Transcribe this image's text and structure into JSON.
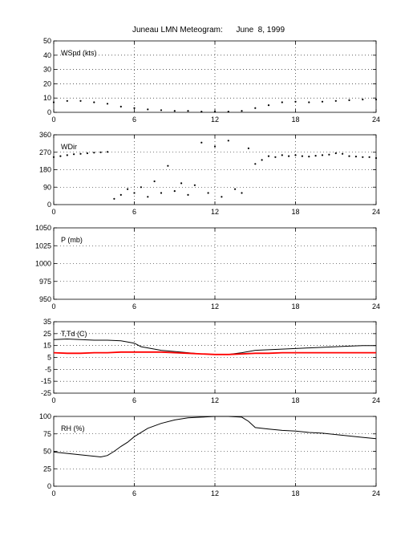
{
  "page": {
    "title": "Juneau LMN Meteogram:      June  8, 1999"
  },
  "chart_data": [
    {
      "type": "scatter",
      "panel_label": "WSpd (kts)",
      "x_ticks": [
        "0",
        "6",
        "12",
        "18",
        "24"
      ],
      "y_ticks": [
        "0",
        "10",
        "20",
        "30",
        "40",
        "50"
      ],
      "xlim": [
        0,
        24
      ],
      "ylim": [
        0,
        50
      ],
      "grid": true,
      "series": [
        {
          "color": "#000000",
          "x": [
            0,
            1,
            2,
            3,
            4,
            5,
            6,
            7,
            8,
            9,
            10,
            11,
            12,
            13,
            14,
            15,
            16,
            17,
            18,
            19,
            20,
            21,
            22,
            23,
            24
          ],
          "y": [
            7,
            8,
            8,
            7,
            6,
            4,
            3,
            2,
            1.5,
            1,
            1,
            0.5,
            0.5,
            0.5,
            1,
            3,
            5,
            7,
            7.5,
            7,
            7.5,
            8,
            8.5,
            9,
            9
          ]
        }
      ]
    },
    {
      "type": "scatter",
      "panel_label": "WDir",
      "x_ticks": [
        "0",
        "6",
        "12",
        "18",
        "24"
      ],
      "y_ticks": [
        "0",
        "90",
        "180",
        "270",
        "360"
      ],
      "xlim": [
        0,
        24
      ],
      "ylim": [
        0,
        360
      ],
      "grid": true,
      "series": [
        {
          "color": "#000000",
          "x": [
            0,
            0.5,
            1,
            1.5,
            2,
            2.5,
            3,
            3.5,
            4,
            4.5,
            5,
            5.5,
            6,
            6.5,
            7,
            7.5,
            8,
            8.5,
            9,
            9.5,
            10,
            10.5,
            11,
            11.5,
            12,
            12.5,
            13,
            13.5,
            14,
            14.5,
            15,
            15.5,
            16,
            16.5,
            17,
            17.5,
            18,
            18.5,
            19,
            19.5,
            20,
            20.5,
            21,
            21.5,
            22,
            22.5,
            23,
            23.5,
            24
          ],
          "y": [
            245,
            250,
            255,
            260,
            262,
            265,
            268,
            270,
            272,
            30,
            50,
            80,
            60,
            90,
            40,
            120,
            60,
            200,
            70,
            110,
            50,
            100,
            320,
            60,
            300,
            40,
            330,
            80,
            60,
            290,
            210,
            230,
            250,
            245,
            255,
            250,
            255,
            250,
            248,
            252,
            255,
            258,
            265,
            262,
            250,
            248,
            245,
            245,
            240
          ]
        }
      ]
    },
    {
      "type": "line",
      "panel_label": "P (mb)",
      "x_ticks": [
        "0",
        "6",
        "12",
        "18",
        "24"
      ],
      "y_ticks": [
        "950",
        "975",
        "1000",
        "1025",
        "1050"
      ],
      "xlim": [
        0,
        24
      ],
      "ylim": [
        950,
        1050
      ],
      "grid": true,
      "series": []
    },
    {
      "type": "line",
      "panel_label": "T,Td (C)",
      "x_ticks": [
        "0",
        "6",
        "12",
        "18",
        "24"
      ],
      "y_ticks": [
        "-25",
        "-15",
        "-5",
        "5",
        "15",
        "25",
        "35"
      ],
      "xlim": [
        0,
        24
      ],
      "ylim": [
        -25,
        35
      ],
      "grid": true,
      "series": [
        {
          "color": "#000000",
          "x": [
            0,
            1,
            2,
            3,
            4,
            5,
            6,
            6.5,
            7,
            8,
            9,
            10,
            11,
            12,
            13,
            14,
            15,
            16,
            17,
            18,
            19,
            20,
            21,
            22,
            23,
            24
          ],
          "y": [
            20,
            20.5,
            20,
            19.5,
            19.5,
            19,
            17,
            14,
            13,
            11,
            10,
            9,
            8,
            7.5,
            7.5,
            9,
            11,
            11.5,
            12,
            12.5,
            13,
            13.5,
            14,
            14.5,
            15,
            15
          ]
        },
        {
          "color": "#ff0000",
          "x": [
            0,
            1,
            2,
            3,
            4,
            5,
            6,
            7,
            8,
            9,
            10,
            11,
            12,
            13,
            14,
            15,
            16,
            17,
            18,
            19,
            20,
            21,
            22,
            23,
            24
          ],
          "y": [
            9,
            8.5,
            8.5,
            9,
            9,
            9.5,
            9.5,
            9.5,
            9.5,
            9,
            8.5,
            8,
            7.5,
            7.5,
            8,
            8.5,
            8.5,
            9,
            9,
            9,
            9,
            9,
            9,
            9,
            9
          ]
        }
      ]
    },
    {
      "type": "line",
      "panel_label": "RH (%)",
      "x_ticks": [
        "0",
        "6",
        "12",
        "18",
        "24"
      ],
      "y_ticks": [
        "0",
        "25",
        "50",
        "75",
        "100"
      ],
      "xlim": [
        0,
        24
      ],
      "ylim": [
        0,
        100
      ],
      "grid": true,
      "series": [
        {
          "color": "#000000",
          "x": [
            0,
            1,
            2,
            3,
            3.5,
            4,
            4.5,
            5,
            5.5,
            6,
            7,
            8,
            9,
            10,
            11,
            12,
            13,
            14,
            14.5,
            15,
            16,
            17,
            18,
            19,
            20,
            21,
            22,
            23,
            24
          ],
          "y": [
            49,
            47,
            45,
            43,
            42,
            44,
            50,
            57,
            63,
            71,
            83,
            90,
            95,
            98,
            99,
            100,
            100,
            99,
            93,
            84,
            82,
            80,
            79,
            77,
            76,
            74,
            72,
            70,
            68
          ]
        }
      ]
    }
  ]
}
